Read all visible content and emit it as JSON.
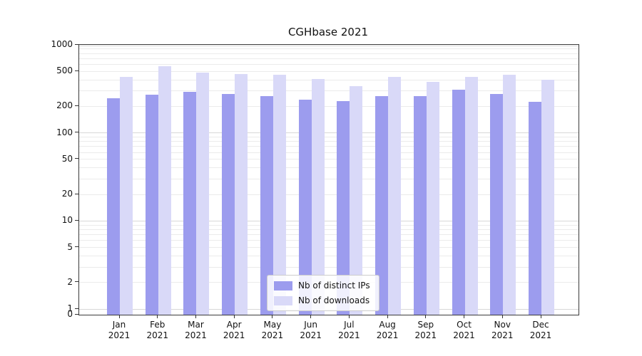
{
  "chart_data": {
    "type": "bar",
    "title": "CGHbase 2021",
    "yscale": "symlog",
    "ylim": [
      0,
      1000
    ],
    "y_ticks": [
      1000,
      500,
      200,
      100,
      50,
      20,
      10,
      5,
      2,
      1,
      0
    ],
    "grid": true,
    "legend_position": "lower center",
    "year_label": "2021",
    "categories": [
      "Jan",
      "Feb",
      "Mar",
      "Apr",
      "May",
      "Jun",
      "Jul",
      "Aug",
      "Sep",
      "Oct",
      "Nov",
      "Dec"
    ],
    "series": [
      {
        "name": "Nb of distinct IPs",
        "color": "#9c9cee",
        "values": [
          250,
          270,
          295,
          275,
          260,
          240,
          230,
          260,
          260,
          310,
          275,
          225
        ]
      },
      {
        "name": "Nb of downloads",
        "color": "#d9d9f8",
        "values": [
          435,
          570,
          480,
          470,
          460,
          410,
          340,
          430,
          380,
          435,
          455,
          405
        ]
      }
    ]
  }
}
